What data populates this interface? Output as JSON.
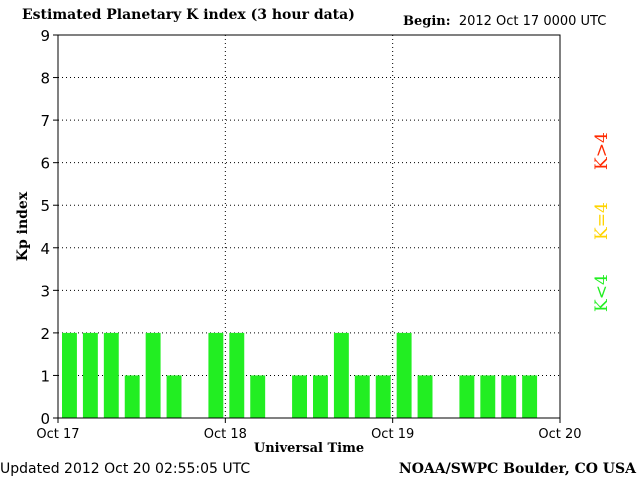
{
  "header": {
    "title": "Estimated Planetary K index (3 hour data)",
    "begin_label": "Begin:",
    "begin_value": "2012 Oct 17 0000 UTC"
  },
  "footer": {
    "updated": "Updated 2012 Oct 20 02:55:05 UTC",
    "source": "NOAA/SWPC Boulder, CO USA"
  },
  "legend": {
    "high": {
      "label": "K>4",
      "color": "#ff2a00"
    },
    "mid": {
      "label": "K=4",
      "color": "#ffd400"
    },
    "low": {
      "label": "K<4",
      "color": "#22ee22"
    }
  },
  "chart_data": {
    "type": "bar",
    "title": "Estimated Planetary K index (3 hour data)",
    "xlabel": "Universal Time",
    "ylabel": "Kp index",
    "ylim": [
      0,
      9
    ],
    "yticks": [
      "0",
      "1",
      "2",
      "3",
      "4",
      "5",
      "6",
      "7",
      "8",
      "9"
    ],
    "xticks": [
      "Oct 17",
      "Oct 18",
      "Oct 19",
      "Oct 20"
    ],
    "interval_hours": 3,
    "values": [
      2,
      2,
      2,
      1,
      2,
      1,
      0,
      2,
      2,
      1,
      0,
      1,
      1,
      2,
      1,
      1,
      2,
      1,
      0,
      1,
      1,
      1,
      1,
      0
    ],
    "bar_color": "#22ee22",
    "grid": true
  }
}
